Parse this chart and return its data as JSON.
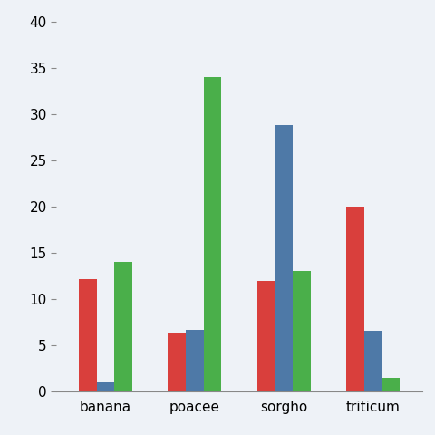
{
  "categories": [
    "banana",
    "poacee",
    "sorgho",
    "triticum"
  ],
  "series": {
    "red": [
      12.2,
      6.3,
      12.0,
      20.0
    ],
    "blue": [
      1.0,
      6.7,
      28.8,
      6.6
    ],
    "green": [
      14.0,
      34.0,
      13.0,
      1.5
    ]
  },
  "colors": {
    "red": "#d93f3c",
    "blue": "#4e79a7",
    "green": "#4aaf4a"
  },
  "ylim": [
    0,
    40
  ],
  "yticks": [
    0,
    5,
    10,
    15,
    20,
    25,
    30,
    35,
    40
  ],
  "background_color": "#eef2f7",
  "bar_width": 0.2,
  "tick_fontsize": 11,
  "xlabel_fontsize": 11
}
